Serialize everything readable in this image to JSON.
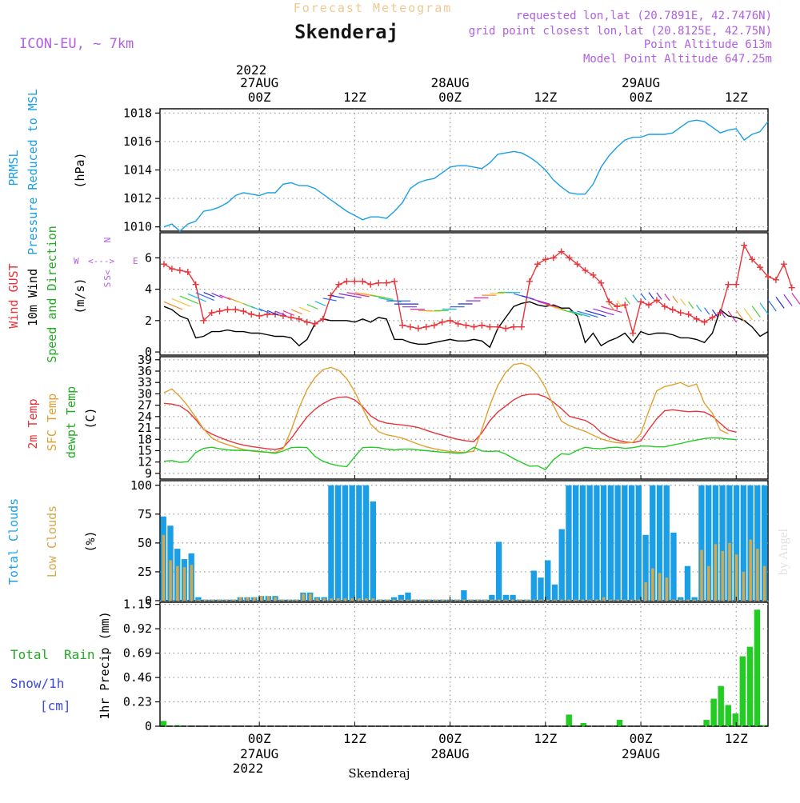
{
  "header": {
    "product": "Forecast Meteogram",
    "station": "Skenderaj",
    "model": "ICON-EU, ~ 7km",
    "requested": "requested lon,lat (20.7891E, 42.7476N)",
    "gridpoint": "grid point closest lon,lat (20.8125E, 42.75N)",
    "altitude": "Point Altitude 613m",
    "model_altitude": "Model Point Altitude 647.25m",
    "footer_station": "Skenderaj",
    "credit": "by Angel"
  },
  "time_axis": {
    "year": "2022",
    "days": [
      {
        "hour": 12,
        "hour_label": "00Z",
        "date_label": "27AUG"
      },
      {
        "hour": 36,
        "hour_label": "00Z",
        "date_label": "28AUG"
      },
      {
        "hour": 60,
        "hour_label": "00Z",
        "date_label": "29AUG"
      }
    ],
    "noons": [
      {
        "hour": 24,
        "label": "12Z"
      },
      {
        "hour": 48,
        "label": "12Z"
      },
      {
        "hour": 72,
        "label": "12Z"
      }
    ],
    "xlim": [
      -0.5,
      76
    ]
  },
  "chart_data": [
    {
      "type": "line",
      "id": "pressure",
      "title": "PRMSL Pressure Reduced to MSL",
      "ylabel_parts": [
        "PRMSL",
        "Pressure Reduced to MSL",
        "(hPa)"
      ],
      "ylim": [
        1009.7,
        1018.3
      ],
      "ticks": [
        1010,
        1012,
        1014,
        1016,
        1018
      ],
      "color": "#1a9fe6",
      "series": [
        {
          "name": "PRMSL",
          "values": [
            1010.0,
            1010.2,
            1009.7,
            1010.2,
            1010.4,
            1011.1,
            1011.2,
            1011.4,
            1011.7,
            1012.2,
            1012.4,
            1012.3,
            1012.2,
            1012.4,
            1012.4,
            1013.0,
            1013.1,
            1012.9,
            1012.9,
            1012.7,
            1012.3,
            1011.9,
            1011.5,
            1011.1,
            1010.8,
            1010.5,
            1010.7,
            1010.7,
            1010.6,
            1011.1,
            1011.7,
            1012.7,
            1013.1,
            1013.3,
            1013.4,
            1013.8,
            1014.2,
            1014.3,
            1014.3,
            1014.2,
            1014.1,
            1014.5,
            1015.1,
            1015.2,
            1015.3,
            1015.2,
            1014.9,
            1014.5,
            1014.0,
            1013.3,
            1012.8,
            1012.4,
            1012.3,
            1012.3,
            1013.0,
            1014.2,
            1015.0,
            1015.6,
            1016.1,
            1016.3,
            1016.3,
            1016.5,
            1016.5,
            1016.5,
            1016.6,
            1017.0,
            1017.4,
            1017.5,
            1017.4,
            1017.0,
            1016.6,
            1016.8,
            1016.9,
            1016.1,
            1016.5,
            1016.7,
            1017.4
          ]
        }
      ]
    },
    {
      "type": "line",
      "id": "wind",
      "title": "Wind GUST / 10m Wind Speed and Direction",
      "ylabel_parts": [
        "Wind GUST",
        "10m Wind",
        "Speed and Direction",
        "(m/s)"
      ],
      "compass": {
        "n": "N",
        "e": "E",
        "s": "S",
        "w": "W",
        "arrow": "<--->",
        "s_marks": "S<"
      },
      "ylim": [
        -0.2,
        7.6
      ],
      "ticks": [
        0,
        2,
        4,
        6
      ],
      "series": [
        {
          "name": "Wind GUST",
          "color": "#e8343a",
          "values": [
            5.6,
            5.3,
            5.2,
            5.1,
            4.3,
            2.0,
            2.5,
            2.6,
            2.7,
            2.7,
            2.6,
            2.4,
            2.3,
            2.4,
            2.4,
            2.3,
            2.2,
            2.1,
            1.9,
            1.8,
            2.1,
            3.6,
            4.3,
            4.5,
            4.5,
            4.5,
            4.3,
            4.4,
            4.4,
            4.5,
            1.7,
            1.6,
            1.5,
            1.6,
            1.7,
            1.9,
            2.0,
            1.8,
            1.7,
            1.6,
            1.7,
            1.6,
            1.6,
            1.5,
            1.6,
            1.6,
            4.5,
            5.6,
            5.9,
            6.0,
            6.4,
            6.0,
            5.6,
            5.2,
            4.9,
            4.4,
            3.2,
            2.9,
            3.0,
            1.2,
            3.2,
            3.0,
            3.3,
            2.9,
            2.7,
            2.5,
            2.4,
            2.1,
            1.9,
            2.2,
            2.5,
            4.3,
            4.3,
            6.8,
            5.9,
            5.4,
            4.8,
            4.6,
            5.6,
            4.1
          ]
        },
        {
          "name": "10m Wind",
          "color": "#000000",
          "values": [
            2.9,
            2.7,
            2.3,
            2.1,
            0.9,
            1.0,
            1.3,
            1.3,
            1.4,
            1.3,
            1.3,
            1.2,
            1.2,
            1.1,
            1.0,
            1.0,
            0.9,
            0.4,
            0.8,
            1.8,
            2.1,
            2.0,
            2.0,
            2.0,
            1.9,
            2.1,
            1.9,
            2.2,
            2.1,
            0.8,
            0.8,
            0.6,
            0.5,
            0.5,
            0.6,
            0.7,
            0.8,
            0.7,
            0.7,
            0.8,
            0.7,
            0.3,
            1.5,
            2.2,
            2.9,
            3.1,
            3.2,
            3.0,
            2.9,
            3.0,
            2.8,
            2.8,
            2.3,
            0.6,
            1.2,
            0.4,
            0.7,
            0.9,
            1.2,
            0.6,
            1.3,
            1.1,
            1.2,
            1.2,
            1.1,
            0.9,
            0.9,
            0.8,
            0.6,
            1.2,
            2.7,
            2.3,
            2.2,
            2.0,
            1.6,
            1.0,
            1.3
          ]
        }
      ],
      "arrow_colors": [
        "#f08c2a",
        "#f0c43a",
        "#4ad13a",
        "#1ab8d8",
        "#2a6ae8",
        "#1a2ae0",
        "#8a2ae0",
        "#e02a9e"
      ]
    },
    {
      "type": "line",
      "id": "temperature",
      "title": "2m Temp / SFC Temp / dewpt Temp",
      "ylabel_parts": [
        "2m Temp",
        "SFC Temp",
        "dewpt Temp",
        "(C)"
      ],
      "ylim": [
        7.5,
        39.8
      ],
      "ticks": [
        9,
        12,
        15,
        18,
        21,
        24,
        27,
        30,
        33,
        36,
        39
      ],
      "series": [
        {
          "name": "2m Temp",
          "color": "#e8343a",
          "values": [
            27.5,
            27.3,
            26.8,
            25.4,
            23.2,
            20.6,
            19.4,
            18.5,
            17.7,
            17.0,
            16.5,
            16.1,
            15.8,
            15.5,
            15.3,
            15.8,
            18.2,
            21.1,
            23.9,
            25.9,
            27.4,
            28.5,
            29.1,
            29.2,
            28.4,
            26.6,
            24.2,
            22.9,
            22.3,
            22.0,
            21.8,
            21.5,
            21.1,
            20.4,
            19.7,
            19.1,
            18.5,
            18.0,
            17.6,
            17.4,
            19.7,
            22.9,
            25.2,
            26.8,
            28.4,
            29.5,
            29.9,
            29.9,
            29.2,
            27.8,
            26.1,
            24.1,
            23.5,
            23.0,
            21.8,
            19.8,
            18.6,
            17.8,
            17.3,
            17.1,
            17.6,
            20.6,
            23.4,
            25.5,
            25.8,
            25.5,
            25.3,
            25.4,
            25.2,
            24.1,
            22.2,
            20.4,
            19.9
          ]
        },
        {
          "name": "SFC Temp",
          "color": "#e0a030",
          "values": [
            30.3,
            31.3,
            29.3,
            26.8,
            23.8,
            20.7,
            18.4,
            17.3,
            16.6,
            15.9,
            15.3,
            14.9,
            14.7,
            14.6,
            14.5,
            15.5,
            20.4,
            26.3,
            31.1,
            34.3,
            36.4,
            37.0,
            36.2,
            34.0,
            30.6,
            26.2,
            22.0,
            20.0,
            19.2,
            18.8,
            18.3,
            17.5,
            16.7,
            16.0,
            15.5,
            15.1,
            14.8,
            14.6,
            14.6,
            14.8,
            20.6,
            27.0,
            32.2,
            35.7,
            37.7,
            38.1,
            37.3,
            35.1,
            31.6,
            26.9,
            22.8,
            21.6,
            20.8,
            20.1,
            19.1,
            18.1,
            17.5,
            17.1,
            17.0,
            17.2,
            19.5,
            25.5,
            30.8,
            31.9,
            32.4,
            33.0,
            31.9,
            32.6,
            27.5,
            24.9,
            20.4,
            19.5
          ]
        },
        {
          "name": "dewpt Temp",
          "color": "#22cc22",
          "values": [
            12.2,
            12.4,
            11.9,
            12.1,
            14.5,
            15.6,
            15.9,
            15.5,
            15.2,
            15.1,
            15.1,
            15.0,
            14.8,
            14.6,
            14.3,
            14.9,
            15.8,
            15.9,
            15.8,
            13.5,
            12.2,
            11.5,
            11.0,
            10.8,
            13.4,
            15.8,
            15.9,
            15.8,
            15.4,
            15.2,
            15.4,
            15.4,
            15.2,
            15.0,
            14.8,
            14.6,
            14.5,
            14.3,
            14.5,
            15.9,
            14.9,
            14.8,
            14.9,
            14.1,
            12.9,
            11.9,
            10.9,
            11.0,
            10.0,
            12.6,
            14.2,
            14.0,
            15.1,
            15.9,
            15.6,
            15.5,
            15.8,
            15.9,
            15.6,
            15.8,
            16.2,
            16.2,
            16.0,
            16.0,
            16.5,
            16.9,
            17.4,
            17.8,
            18.2,
            18.4,
            18.3,
            18.1,
            17.9
          ]
        }
      ]
    },
    {
      "type": "bar",
      "id": "clouds",
      "title": "Total Clouds / Low Clouds",
      "ylabel_parts": [
        "Total Clouds",
        "Low Clouds",
        "(%)"
      ],
      "ylim": [
        0,
        104
      ],
      "ticks": [
        0,
        25,
        50,
        75,
        100
      ],
      "series": [
        {
          "name": "Total Clouds",
          "color": "#1a9fe6",
          "values": [
            73,
            65,
            45,
            36,
            41,
            3,
            1,
            1,
            1,
            1,
            1,
            3,
            3,
            3,
            4,
            4,
            4,
            1,
            1,
            1,
            7,
            7,
            3,
            3,
            100,
            100,
            100,
            100,
            100,
            100,
            86,
            1,
            1,
            3,
            5,
            7,
            1,
            1,
            1,
            1,
            1,
            1,
            1,
            9,
            1,
            1,
            1,
            5,
            51,
            5,
            5,
            1,
            1,
            26,
            20,
            35,
            14,
            62,
            100,
            100,
            100,
            100,
            100,
            100,
            100,
            100,
            100,
            100,
            100,
            57,
            100,
            100,
            100,
            59,
            3,
            30,
            3,
            100,
            100,
            100,
            100,
            100,
            100,
            100,
            100,
            100,
            100
          ]
        },
        {
          "name": "Low Clouds",
          "color": "#d4a84a",
          "values": [
            57,
            35,
            30,
            29,
            31,
            1,
            1,
            1,
            1,
            1,
            1,
            3,
            3,
            3,
            4,
            4,
            3,
            1,
            1,
            1,
            6,
            6,
            2,
            2,
            2,
            2,
            2,
            2,
            2,
            2,
            2,
            1,
            1,
            1,
            1,
            1,
            1,
            1,
            1,
            1,
            1,
            1,
            1,
            1,
            1,
            1,
            1,
            1,
            1,
            1,
            1,
            1,
            1,
            1,
            1,
            1,
            1,
            1,
            1,
            1,
            1,
            1,
            1,
            3,
            1,
            1,
            1,
            1,
            1,
            16,
            28,
            24,
            20,
            1,
            1,
            1,
            1,
            44,
            30,
            49,
            43,
            50,
            40,
            25,
            53,
            45,
            30
          ]
        }
      ]
    },
    {
      "type": "bar",
      "id": "precip",
      "title": "1hr Precip (mm)",
      "ylabel_parts": [
        "Total",
        "Rain",
        "Snow/1h",
        "[cm]",
        "1hr Precip (mm)"
      ],
      "ylim": [
        0,
        1.17
      ],
      "ticks": [
        0,
        0.23,
        0.46,
        0.69,
        0.92,
        1.15
      ],
      "series": [
        {
          "name": "Total Rain",
          "color": "#22cc22",
          "values": [
            0.05,
            0,
            0.01,
            0,
            0,
            0,
            0,
            0,
            0,
            0,
            0,
            0,
            0,
            0,
            0,
            0,
            0,
            0,
            0,
            0,
            0,
            0,
            0,
            0,
            0,
            0,
            0,
            0,
            0,
            0,
            0,
            0,
            0,
            0,
            0,
            0,
            0,
            0,
            0,
            0,
            0,
            0,
            0,
            0,
            0,
            0,
            0,
            0,
            0,
            0,
            0,
            0,
            0,
            0,
            0,
            0,
            0.11,
            0,
            0.03,
            0,
            0,
            0,
            0,
            0.06,
            0,
            0,
            0,
            0,
            0,
            0,
            0,
            0,
            0,
            0,
            0,
            0.06,
            0.26,
            0.38,
            0.2,
            0.12,
            0.66,
            0.75,
            1.1,
            0.01
          ]
        }
      ]
    }
  ]
}
